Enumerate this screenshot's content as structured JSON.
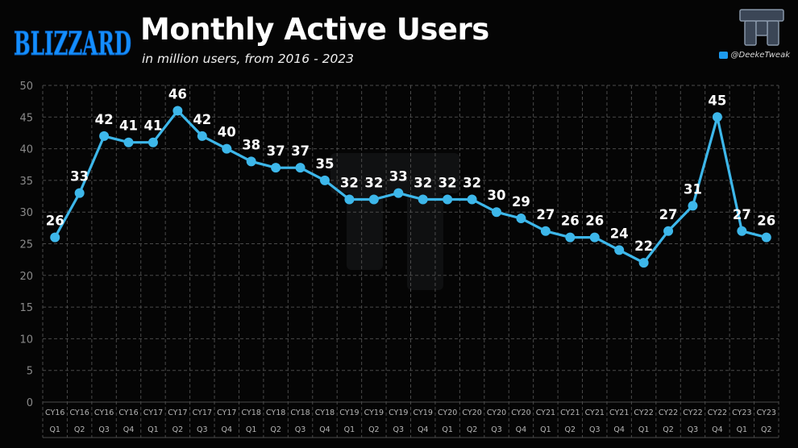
{
  "header": {
    "brand": "BLIZZARD",
    "title": "Monthly Active Users",
    "subtitle": "in million users, from 2016 - 2023",
    "handle": "@DeekeTweak"
  },
  "colors": {
    "line": "#3db7ea",
    "brand": "#148eff",
    "grid": "#4a4a4a",
    "background": "#050505"
  },
  "icons": [
    "blizzard-logo",
    "tt-logo",
    "twitter-icon"
  ],
  "chart_data": {
    "type": "line",
    "title": "Monthly Active Users",
    "ylim": [
      0,
      50
    ],
    "yticks": [
      0,
      5,
      10,
      15,
      20,
      25,
      30,
      35,
      40,
      45,
      50
    ],
    "grid": true,
    "categories": [
      [
        "CY16",
        "Q1"
      ],
      [
        "CY16",
        "Q2"
      ],
      [
        "CY16",
        "Q3"
      ],
      [
        "CY16",
        "Q4"
      ],
      [
        "CY17",
        "Q1"
      ],
      [
        "CY17",
        "Q2"
      ],
      [
        "CY17",
        "Q3"
      ],
      [
        "CY17",
        "Q4"
      ],
      [
        "CY18",
        "Q1"
      ],
      [
        "CY18",
        "Q2"
      ],
      [
        "CY18",
        "Q3"
      ],
      [
        "CY18",
        "Q4"
      ],
      [
        "CY19",
        "Q1"
      ],
      [
        "CY19",
        "Q2"
      ],
      [
        "CY19",
        "Q3"
      ],
      [
        "CY19",
        "Q4"
      ],
      [
        "CY20",
        "Q1"
      ],
      [
        "CY20",
        "Q2"
      ],
      [
        "CY20",
        "Q3"
      ],
      [
        "CY20",
        "Q4"
      ],
      [
        "CY21",
        "Q1"
      ],
      [
        "CY21",
        "Q2"
      ],
      [
        "CY21",
        "Q3"
      ],
      [
        "CY21",
        "Q4"
      ],
      [
        "CY22",
        "Q1"
      ],
      [
        "CY22",
        "Q2"
      ],
      [
        "CY22",
        "Q3"
      ],
      [
        "CY22",
        "Q4"
      ],
      [
        "CY23",
        "Q1"
      ],
      [
        "CY23",
        "Q2"
      ]
    ],
    "series": [
      {
        "name": "Monthly Active Users",
        "values": [
          26,
          33,
          42,
          41,
          41,
          46,
          42,
          40,
          38,
          37,
          37,
          35,
          32,
          32,
          33,
          32,
          32,
          32,
          30,
          29,
          27,
          26,
          26,
          24,
          22,
          27,
          31,
          45,
          27,
          26
        ]
      }
    ]
  }
}
